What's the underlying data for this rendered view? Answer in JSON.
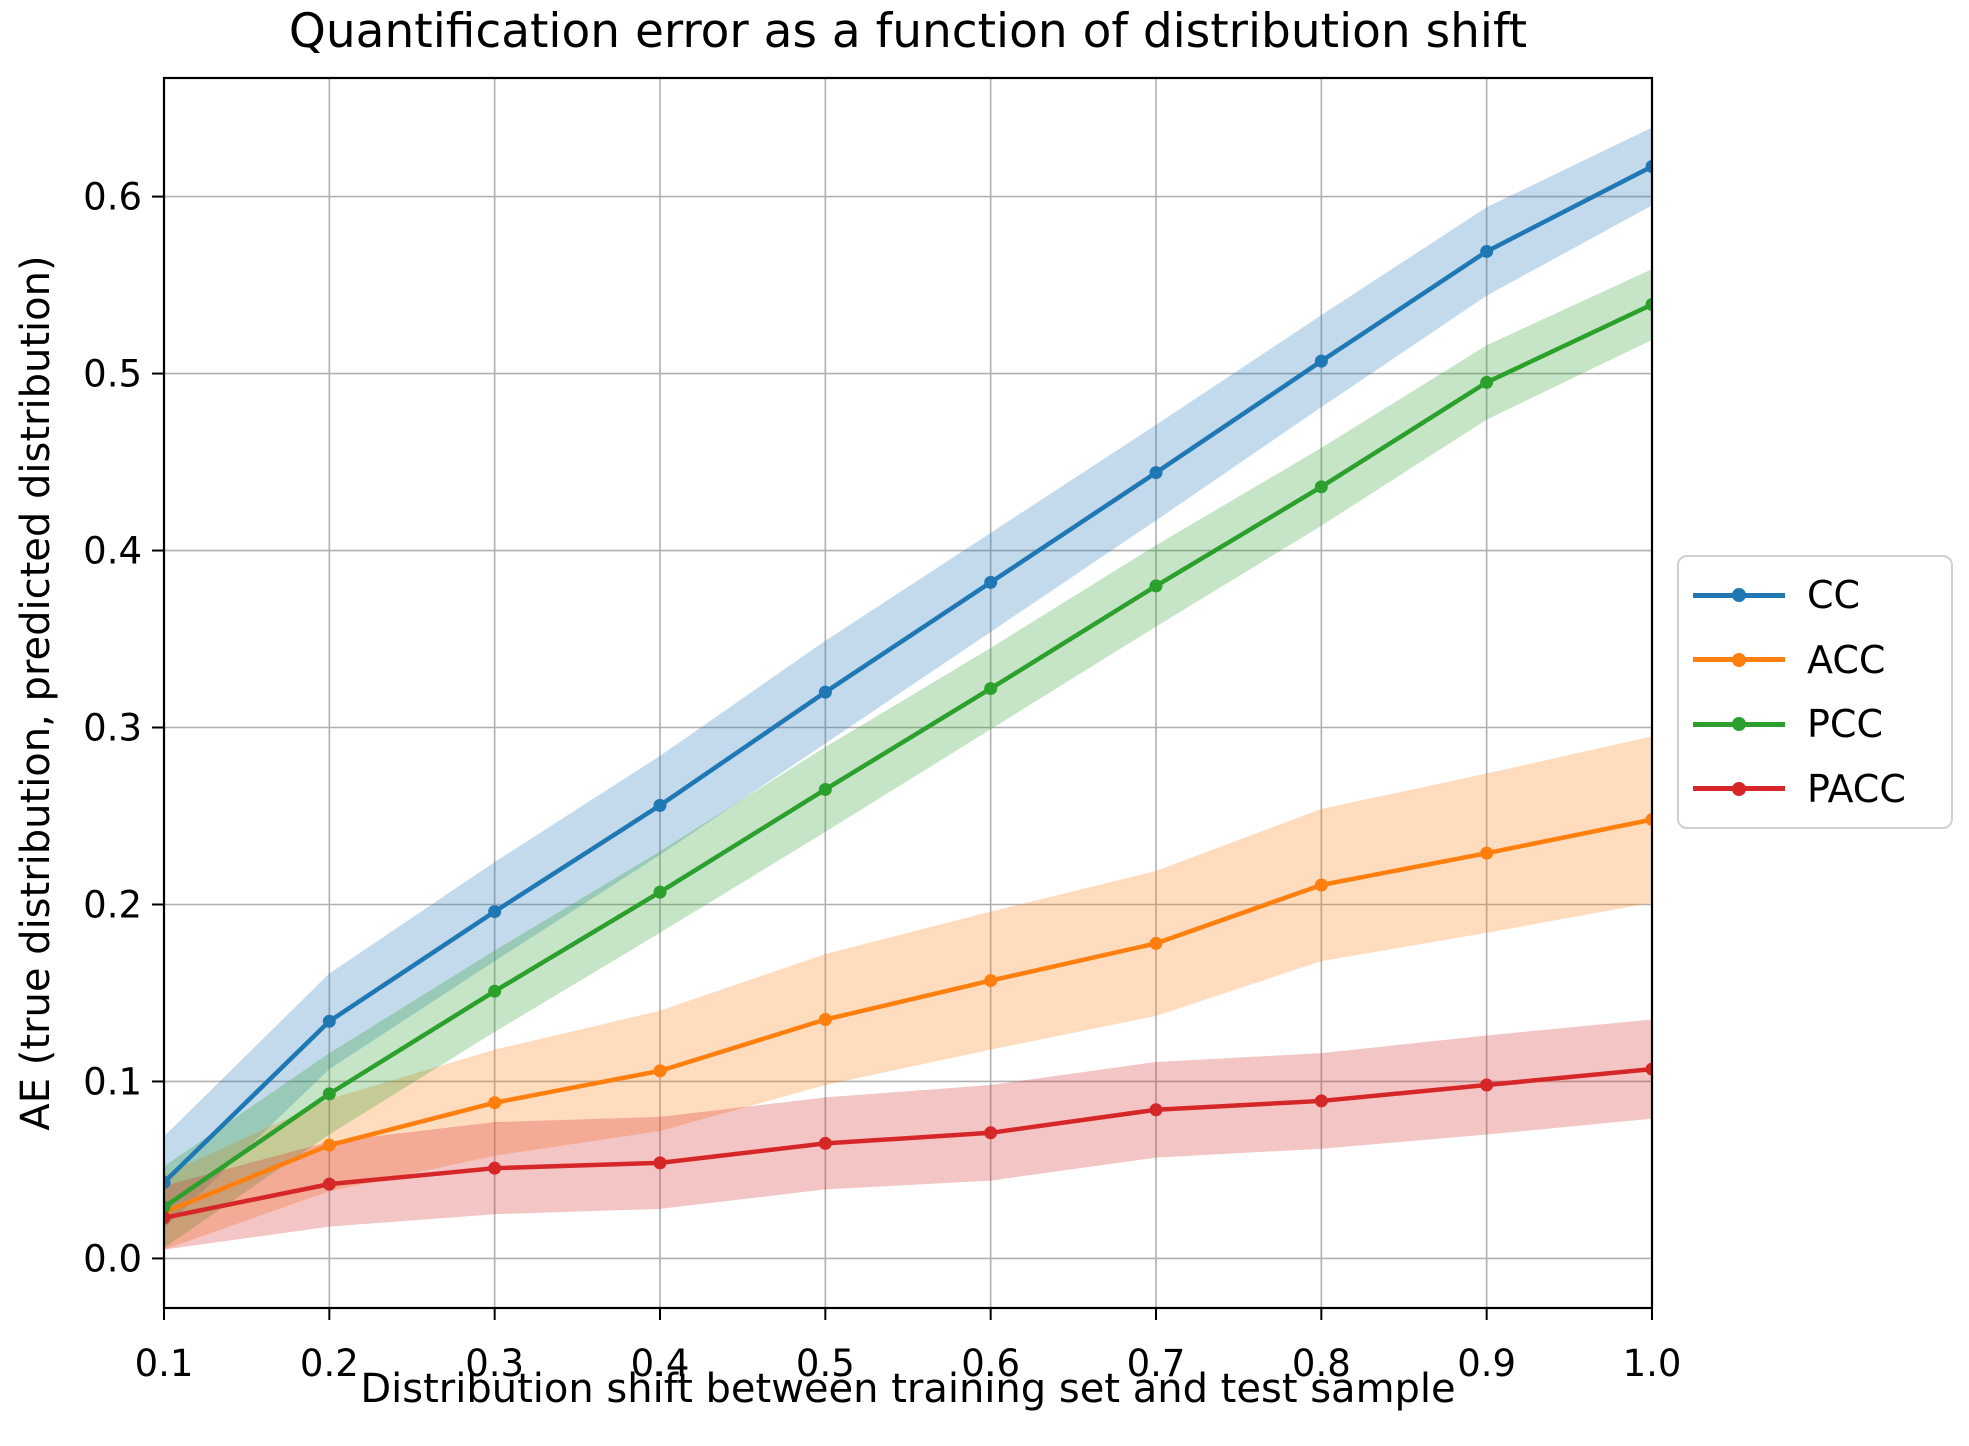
{
  "chart_data": {
    "type": "line",
    "title": "Quantification error as a function of distribution shift",
    "xlabel": "Distribution shift between training set and test sample",
    "ylabel": "AE (true distribution, predicted distribution)",
    "x": [
      0.1,
      0.2,
      0.3,
      0.4,
      0.5,
      0.6,
      0.7,
      0.8,
      0.9,
      1.0
    ],
    "x_tick_labels": [
      "0.1",
      "0.2",
      "0.3",
      "0.4",
      "0.5",
      "0.6",
      "0.7",
      "0.8",
      "0.9",
      "1.0"
    ],
    "y_ticks": [
      0.0,
      0.1,
      0.2,
      0.3,
      0.4,
      0.5,
      0.6
    ],
    "y_tick_labels": [
      "0.0",
      "0.1",
      "0.2",
      "0.3",
      "0.4",
      "0.5",
      "0.6"
    ],
    "xlim": [
      0.1,
      1.0
    ],
    "ylim": [
      -0.028,
      0.667
    ],
    "grid": true,
    "grid_color": "#b0b0b0",
    "spine_color": "#000000",
    "background_color": "#ffffff",
    "band_alpha": 0.27,
    "legend_position": "right-outside",
    "series": [
      {
        "name": "CC",
        "color": "#1f77b4",
        "values": [
          0.043,
          0.134,
          0.196,
          0.256,
          0.32,
          0.382,
          0.444,
          0.507,
          0.569,
          0.617
        ],
        "band_half_width": [
          0.026,
          0.027,
          0.028,
          0.028,
          0.029,
          0.028,
          0.027,
          0.026,
          0.025,
          0.022
        ]
      },
      {
        "name": "ACC",
        "color": "#ff7f0e",
        "values": [
          0.026,
          0.064,
          0.088,
          0.106,
          0.135,
          0.157,
          0.178,
          0.211,
          0.229,
          0.248
        ],
        "band_half_width": [
          0.021,
          0.026,
          0.03,
          0.034,
          0.037,
          0.039,
          0.041,
          0.043,
          0.045,
          0.047
        ]
      },
      {
        "name": "PCC",
        "color": "#2ca02c",
        "values": [
          0.029,
          0.093,
          0.151,
          0.207,
          0.265,
          0.322,
          0.38,
          0.436,
          0.495,
          0.539
        ],
        "band_half_width": [
          0.023,
          0.023,
          0.023,
          0.023,
          0.024,
          0.023,
          0.023,
          0.022,
          0.021,
          0.02
        ]
      },
      {
        "name": "PACC",
        "color": "#d62728",
        "values": [
          0.023,
          0.042,
          0.051,
          0.054,
          0.065,
          0.071,
          0.084,
          0.089,
          0.098,
          0.107
        ],
        "band_half_width": [
          0.018,
          0.024,
          0.026,
          0.026,
          0.026,
          0.027,
          0.027,
          0.027,
          0.028,
          0.028
        ]
      }
    ]
  }
}
